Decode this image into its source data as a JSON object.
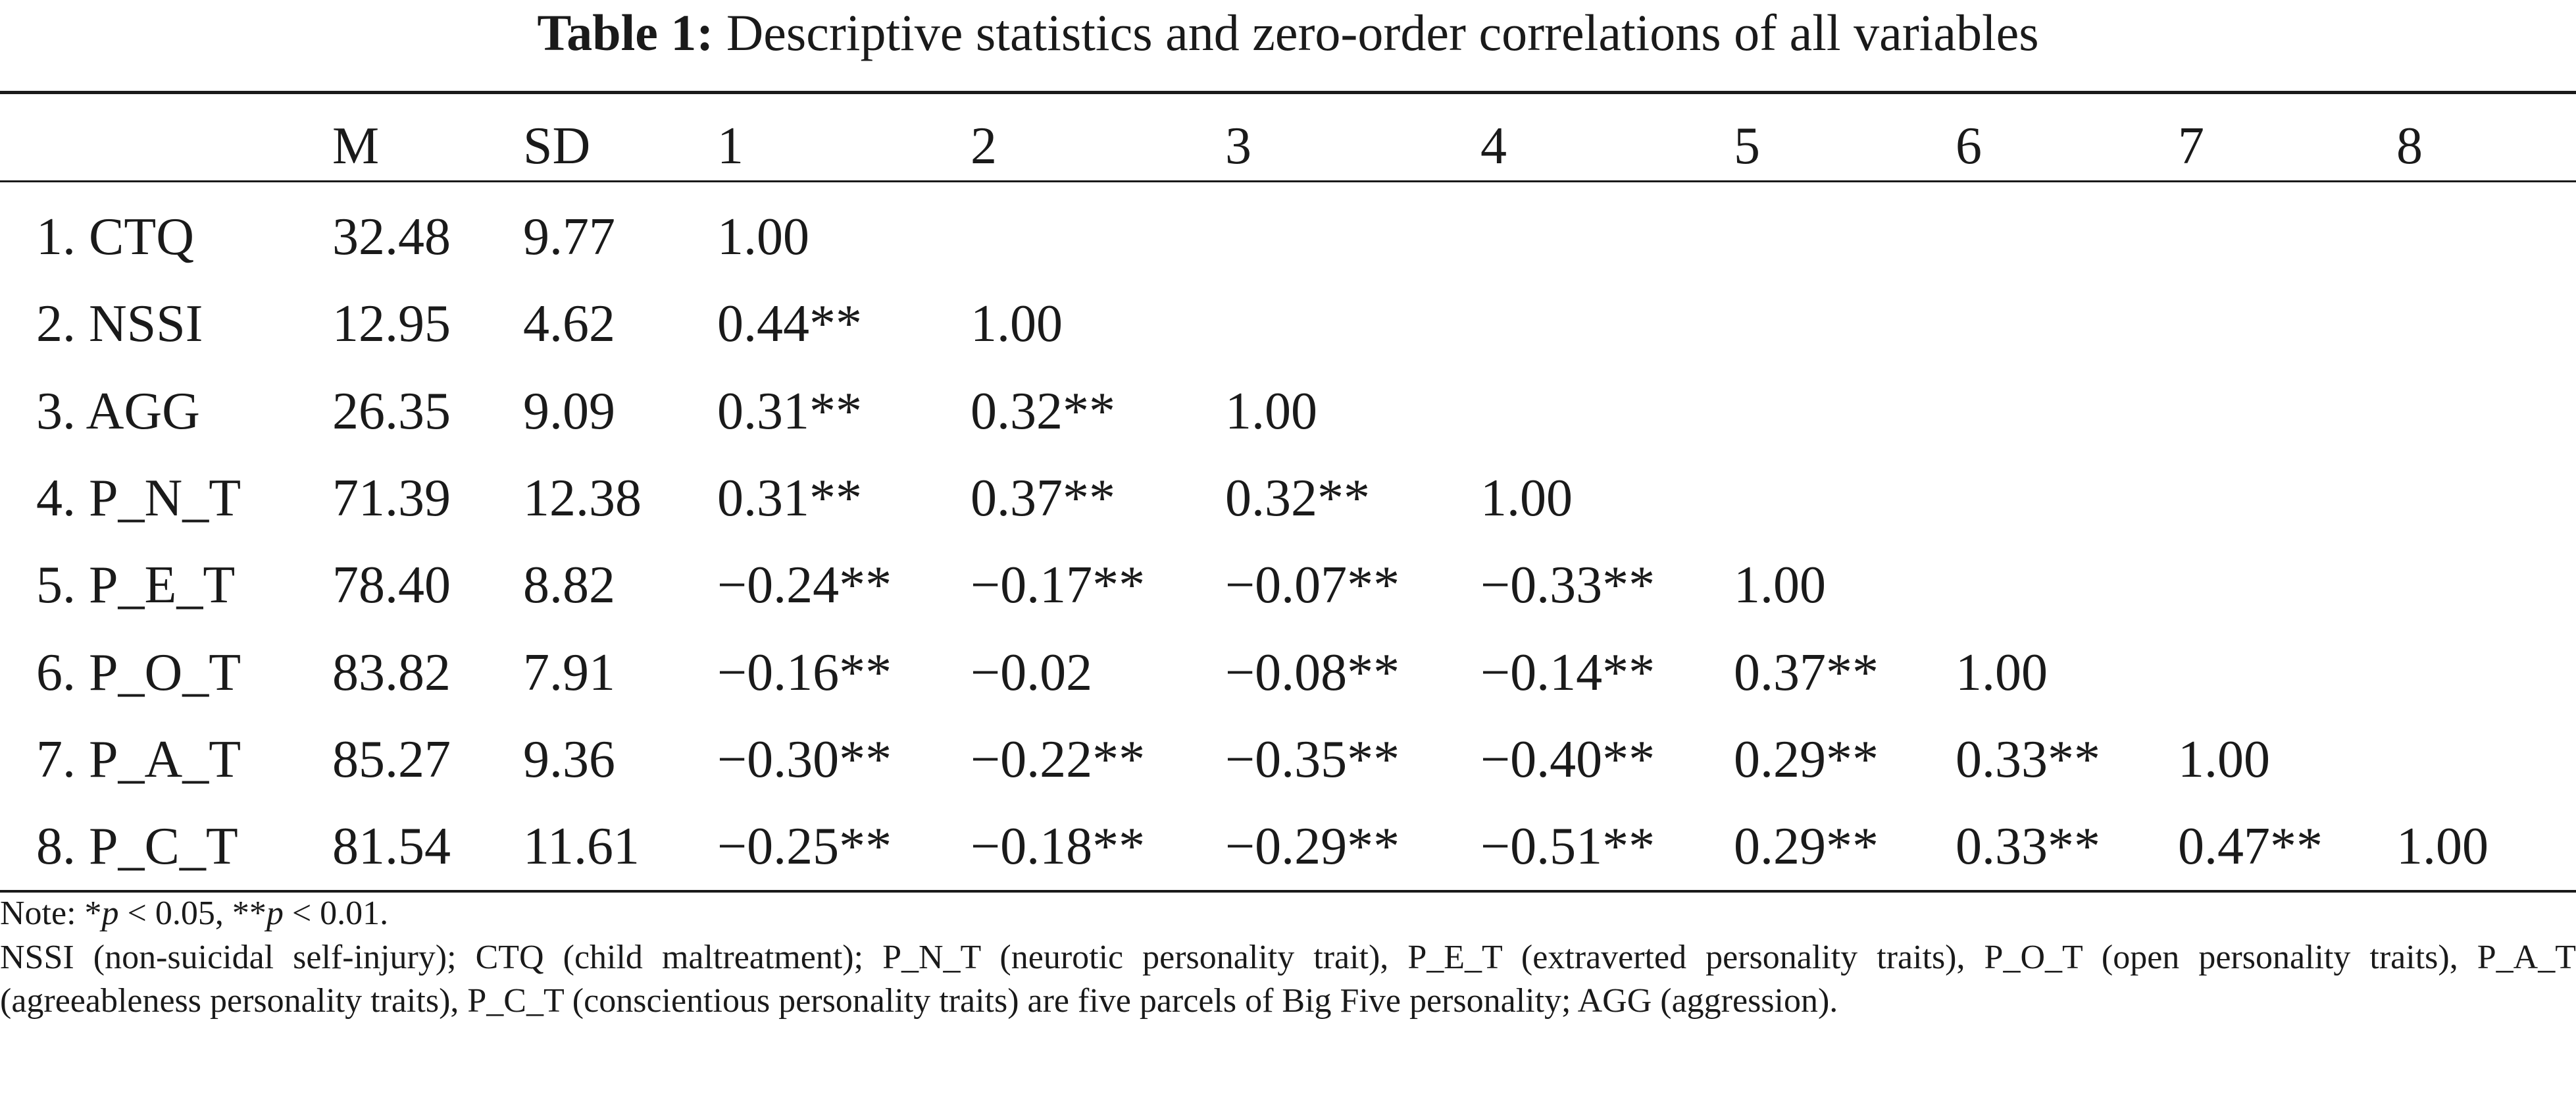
{
  "table": {
    "title_label": "Table 1:",
    "title_text": "Descriptive statistics and zero-order correlations of all variables",
    "headers": [
      "",
      "M",
      "SD",
      "1",
      "2",
      "3",
      "4",
      "5",
      "6",
      "7",
      "8"
    ],
    "rows": [
      [
        "1. CTQ",
        "32.48",
        "9.77",
        "1.00",
        "",
        "",
        "",
        "",
        "",
        "",
        ""
      ],
      [
        "2. NSSI",
        "12.95",
        "4.62",
        "0.44**",
        "1.00",
        "",
        "",
        "",
        "",
        "",
        ""
      ],
      [
        "3. AGG",
        "26.35",
        "9.09",
        "0.31**",
        "0.32**",
        "1.00",
        "",
        "",
        "",
        "",
        ""
      ],
      [
        "4. P_N_T",
        "71.39",
        "12.38",
        "0.31**",
        "0.37**",
        "0.32**",
        "1.00",
        "",
        "",
        "",
        ""
      ],
      [
        "5. P_E_T",
        "78.40",
        "8.82",
        "−0.24**",
        "−0.17**",
        "−0.07**",
        "−0.33**",
        "1.00",
        "",
        "",
        ""
      ],
      [
        "6. P_O_T",
        "83.82",
        "7.91",
        "−0.16**",
        "−0.02",
        "−0.08**",
        "−0.14**",
        "0.37**",
        "1.00",
        "",
        ""
      ],
      [
        "7. P_A_T",
        "85.27",
        "9.36",
        "−0.30**",
        "−0.22**",
        "−0.35**",
        "−0.40**",
        "0.29**",
        "0.33**",
        "1.00",
        ""
      ],
      [
        "8. P_C_T",
        "81.54",
        "11.61",
        "−0.25**",
        "−0.18**",
        "−0.29**",
        "−0.51**",
        "0.29**",
        "0.33**",
        "0.47**",
        "1.00"
      ]
    ]
  },
  "note": {
    "prefix": "Note: *",
    "p1": "p",
    "mid": " < 0.05, **",
    "p2": "p",
    "suffix": " < 0.01.",
    "abbreviations": "NSSI (non-suicidal self-injury); CTQ (child maltreatment); P_N_T (neurotic personality trait), P_E_T (extraverted personality traits), P_O_T (open personality traits), P_A_T (agreeableness personality traits), P_C_T (conscientious personality traits) are five parcels of Big Five personality; AGG (aggression)."
  }
}
